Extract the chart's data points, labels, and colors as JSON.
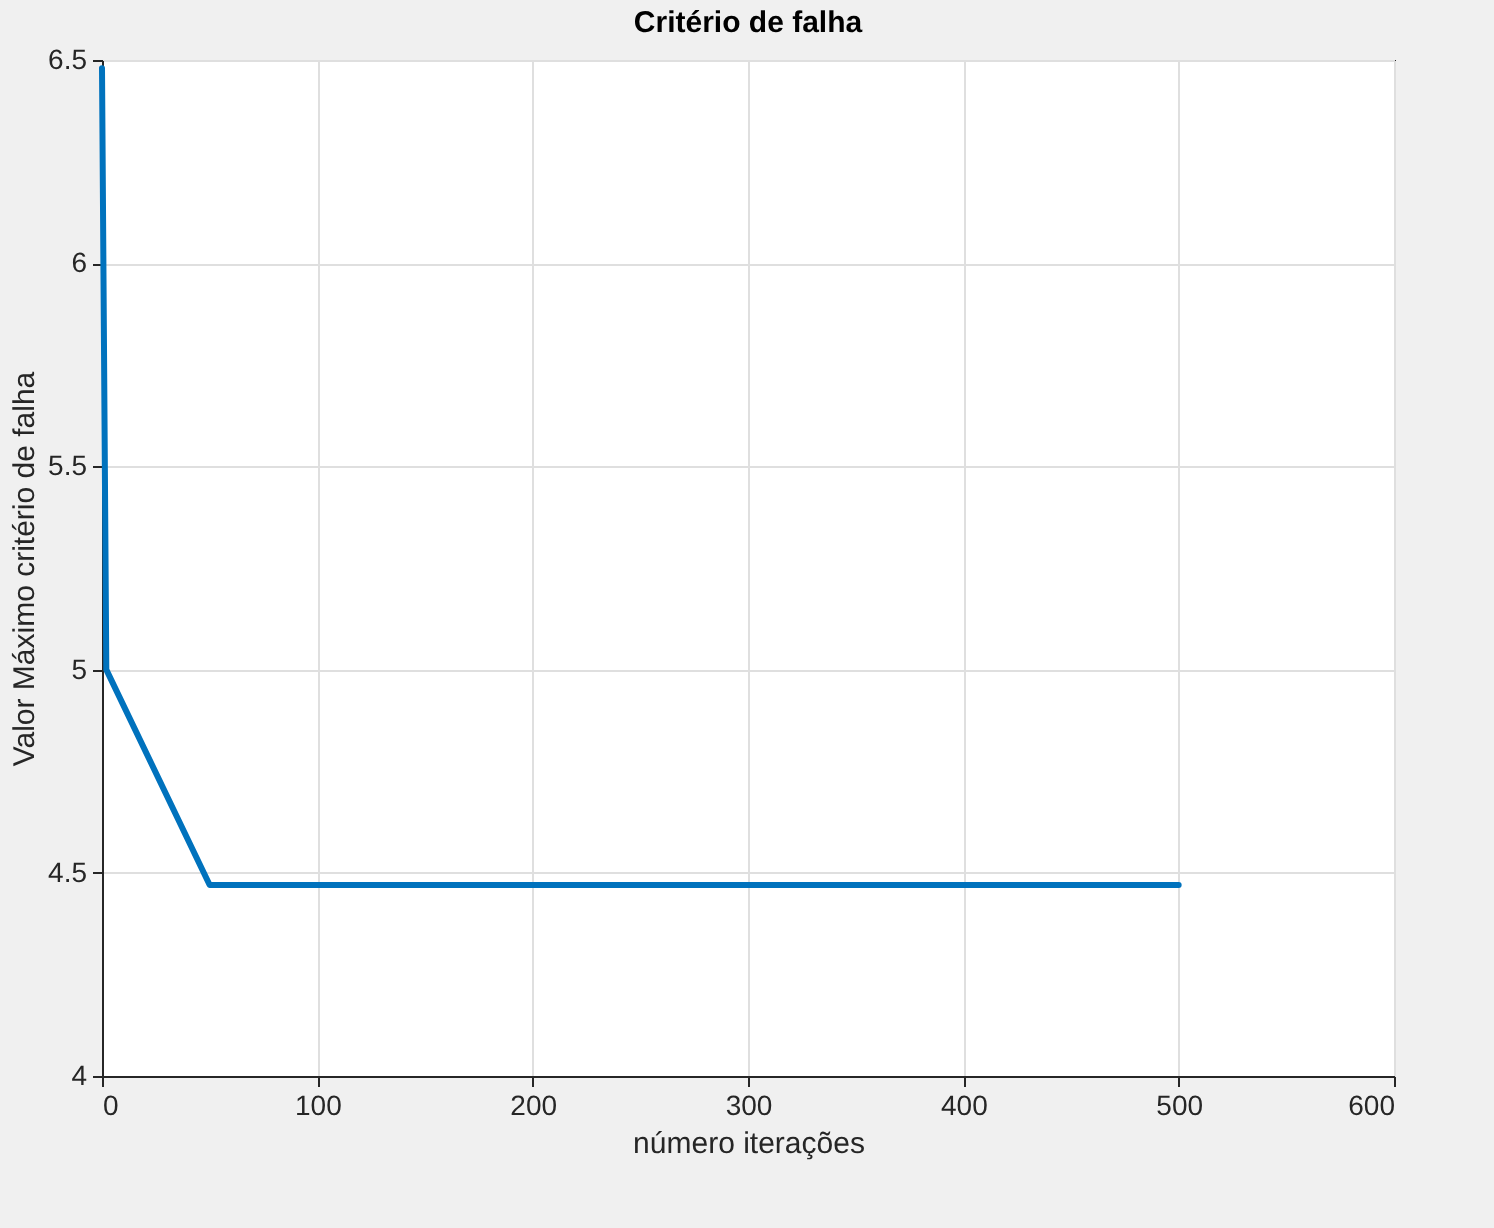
{
  "chart_data": {
    "type": "line",
    "title": "Critério de falha",
    "xlabel": "número iterações",
    "ylabel": "Valor Máximo critério de falha",
    "x": [
      0,
      2,
      50,
      500
    ],
    "series": [
      {
        "color": "#0072bd",
        "values": [
          6.48,
          5.0,
          4.47,
          4.47
        ]
      }
    ],
    "xlim": [
      0,
      600
    ],
    "xticks": [
      0,
      100,
      200,
      300,
      400,
      500,
      600
    ],
    "ylim": [
      4,
      6.5
    ],
    "yticks": [
      4,
      4.5,
      5,
      5.5,
      6,
      6.5
    ],
    "grid": true,
    "legend": false,
    "marker": "none",
    "line_style": "solid"
  }
}
